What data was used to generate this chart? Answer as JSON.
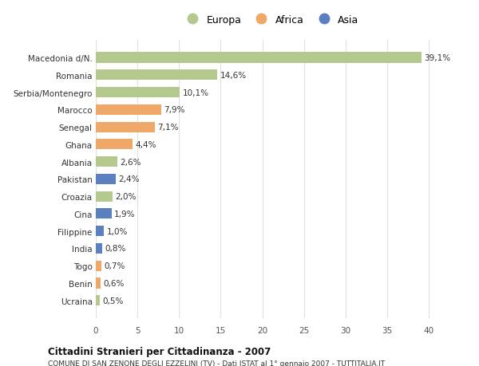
{
  "categories": [
    "Macedonia d/N.",
    "Romania",
    "Serbia/Montenegro",
    "Marocco",
    "Senegal",
    "Ghana",
    "Albania",
    "Pakistan",
    "Croazia",
    "Cina",
    "Filippine",
    "India",
    "Togo",
    "Benin",
    "Ucraina"
  ],
  "values": [
    39.1,
    14.6,
    10.1,
    7.9,
    7.1,
    4.4,
    2.6,
    2.4,
    2.0,
    1.9,
    1.0,
    0.8,
    0.7,
    0.6,
    0.5
  ],
  "labels": [
    "39,1%",
    "14,6%",
    "10,1%",
    "7,9%",
    "7,1%",
    "4,4%",
    "2,6%",
    "2,4%",
    "2,0%",
    "1,9%",
    "1,0%",
    "0,8%",
    "0,7%",
    "0,6%",
    "0,5%"
  ],
  "colors": [
    "#b5c98e",
    "#b5c98e",
    "#b5c98e",
    "#f0a868",
    "#f0a868",
    "#f0a868",
    "#b5c98e",
    "#5b80bf",
    "#b5c98e",
    "#5b80bf",
    "#5b80bf",
    "#5b80bf",
    "#f0a868",
    "#f0a868",
    "#b5c98e"
  ],
  "legend_labels": [
    "Europa",
    "Africa",
    "Asia"
  ],
  "legend_colors": [
    "#b5c98e",
    "#f0a868",
    "#5b80bf"
  ],
  "title": "Cittadini Stranieri per Cittadinanza - 2007",
  "subtitle": "COMUNE DI SAN ZENONE DEGLI EZZELINI (TV) - Dati ISTAT al 1° gennaio 2007 - TUTTITALIA.IT",
  "xlim": [
    0,
    42
  ],
  "xticks": [
    0,
    5,
    10,
    15,
    20,
    25,
    30,
    35,
    40
  ],
  "bg_color": "#ffffff",
  "grid_color": "#e0e0e0",
  "bar_height": 0.6
}
